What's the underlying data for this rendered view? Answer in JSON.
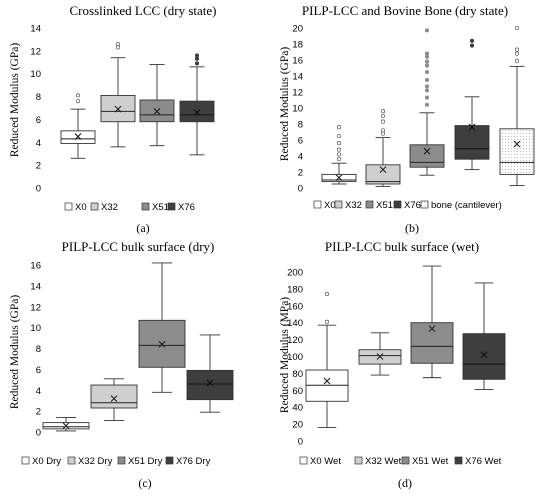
{
  "chart_data": [
    {
      "type": "box",
      "title": "Crosslinked LCC (dry state)",
      "ylabel": "Reduced Modulus (GPa)",
      "ylim": [
        0,
        14
      ],
      "yticks": [
        0,
        2,
        4,
        6,
        8,
        10,
        12,
        14
      ],
      "caption": "(a)",
      "grid": false,
      "legend_position": "bottom",
      "series": [
        {
          "name": "X0",
          "color": "#ffffff",
          "pattern": "none",
          "whisker_low": 2.6,
          "q1": 3.9,
          "median": 4.3,
          "q3": 5.0,
          "whisker_high": 6.9,
          "mean": 4.5,
          "outliers": [
            7.6,
            8.1
          ]
        },
        {
          "name": "X32",
          "color": "#cfcfcf",
          "pattern": "none",
          "whisker_low": 3.6,
          "q1": 5.8,
          "median": 6.7,
          "q3": 8.1,
          "whisker_high": 11.4,
          "mean": 6.9,
          "outliers": [
            12.3,
            12.6
          ]
        },
        {
          "name": "X51",
          "color": "#8c8c8c",
          "pattern": "none",
          "whisker_low": 3.7,
          "q1": 5.8,
          "median": 6.4,
          "q3": 7.7,
          "whisker_high": 10.8,
          "mean": 6.7,
          "outliers": []
        },
        {
          "name": "X76",
          "color": "#3e3e3e",
          "pattern": "none",
          "whisker_low": 2.9,
          "q1": 5.8,
          "median": 6.4,
          "q3": 7.6,
          "whisker_high": 10.6,
          "mean": 6.6,
          "outliers": [
            10.9,
            11.3,
            11.6
          ]
        }
      ]
    },
    {
      "type": "box",
      "title": "PILP-LCC and Bovine Bone (dry state)",
      "ylabel": "Reduced Modulus (GPa)",
      "ylim": [
        0,
        20
      ],
      "yticks": [
        0,
        2,
        4,
        6,
        8,
        10,
        12,
        14,
        16,
        18,
        20
      ],
      "caption": "(b)",
      "grid": false,
      "legend_position": "bottom",
      "series": [
        {
          "name": "X0",
          "color": "#ffffff",
          "pattern": "none",
          "whisker_low": 0.5,
          "q1": 0.8,
          "median": 1.0,
          "q3": 1.7,
          "whisker_high": 3.1,
          "mean": 1.3,
          "outliers": [
            3.6,
            4.2,
            4.8,
            5.6,
            6.5,
            7.6
          ]
        },
        {
          "name": "X32",
          "color": "#cfcfcf",
          "pattern": "none",
          "whisker_low": 0.2,
          "q1": 0.5,
          "median": 0.8,
          "q3": 2.9,
          "whisker_high": 6.3,
          "mean": 2.3,
          "outliers": [
            6.8,
            7.2,
            8.3,
            9.0,
            9.6
          ]
        },
        {
          "name": "X51",
          "color": "#8c8c8c",
          "pattern": "none",
          "whisker_low": 1.6,
          "q1": 2.6,
          "median": 3.2,
          "q3": 5.4,
          "whisker_high": 9.4,
          "mean": 4.6,
          "outliers": [
            10.4,
            11.3,
            12.2,
            12.7,
            13.5,
            14.5,
            15.3,
            15.8,
            16.4,
            16.8,
            19.7
          ]
        },
        {
          "name": "X76",
          "color": "#3e3e3e",
          "pattern": "none",
          "whisker_low": 2.3,
          "q1": 3.6,
          "median": 4.9,
          "q3": 7.8,
          "whisker_high": 11.4,
          "mean": 7.6,
          "outliers": [
            17.8,
            18.4
          ]
        },
        {
          "name": "bone (cantilever)",
          "color": "#ffffff",
          "pattern": "dotted",
          "whisker_low": 0.3,
          "q1": 1.7,
          "median": 3.2,
          "q3": 7.4,
          "whisker_high": 15.2,
          "mean": 5.5,
          "outliers": [
            15.9,
            16.8,
            17.3,
            20.0
          ]
        }
      ]
    },
    {
      "type": "box",
      "title": "PILP-LCC bulk surface (dry)",
      "ylabel": "Reduced Modulus (GPa)",
      "ylim": [
        0,
        16
      ],
      "yticks": [
        0,
        2,
        4,
        6,
        8,
        10,
        12,
        14,
        16
      ],
      "caption": "(c)",
      "grid": false,
      "legend_position": "bottom",
      "series": [
        {
          "name": "X0 Dry",
          "color": "#ffffff",
          "pattern": "none",
          "whisker_low": 0.1,
          "q1": 0.3,
          "median": 0.5,
          "q3": 0.9,
          "whisker_high": 1.4,
          "mean": 0.6,
          "outliers": []
        },
        {
          "name": "X32 Dry",
          "color": "#cfcfcf",
          "pattern": "none",
          "whisker_low": 1.1,
          "q1": 2.3,
          "median": 2.8,
          "q3": 4.5,
          "whisker_high": 5.1,
          "mean": 3.2,
          "outliers": []
        },
        {
          "name": "X51 Dry",
          "color": "#8c8c8c",
          "pattern": "none",
          "whisker_low": 3.8,
          "q1": 6.2,
          "median": 8.3,
          "q3": 10.7,
          "whisker_high": 16.2,
          "mean": 8.4,
          "outliers": []
        },
        {
          "name": "X76 Dry",
          "color": "#3e3e3e",
          "pattern": "none",
          "whisker_low": 1.9,
          "q1": 3.1,
          "median": 4.6,
          "q3": 5.9,
          "whisker_high": 9.3,
          "mean": 4.7,
          "outliers": []
        }
      ]
    },
    {
      "type": "box",
      "title": "PILP-LCC bulk surface (wet)",
      "ylabel": "Reduced Modulus (MPa)",
      "ylim": [
        0,
        200
      ],
      "yticks": [
        0,
        20,
        40,
        60,
        80,
        100,
        120,
        140,
        160,
        180,
        200
      ],
      "caption": "(d)",
      "grid": false,
      "legend_position": "bottom",
      "series": [
        {
          "name": "X0 Wet",
          "color": "#ffffff",
          "pattern": "none",
          "whisker_low": 16,
          "q1": 47,
          "median": 66,
          "q3": 84,
          "whisker_high": 137,
          "mean": 71,
          "outliers": [
            141,
            174
          ]
        },
        {
          "name": "X32 Wet",
          "color": "#cfcfcf",
          "pattern": "none",
          "whisker_low": 78,
          "q1": 91,
          "median": 101,
          "q3": 108,
          "whisker_high": 128,
          "mean": 100,
          "outliers": []
        },
        {
          "name": "X51 Wet",
          "color": "#8c8c8c",
          "pattern": "none",
          "whisker_low": 75,
          "q1": 92,
          "median": 112,
          "q3": 140,
          "whisker_high": 207,
          "mean": 133,
          "outliers": []
        },
        {
          "name": "X76 Wet",
          "color": "#3e3e3e",
          "pattern": "none",
          "whisker_low": 61,
          "q1": 73,
          "median": 91,
          "q3": 127,
          "whisker_high": 187,
          "mean": 102,
          "outliers": []
        }
      ]
    }
  ]
}
